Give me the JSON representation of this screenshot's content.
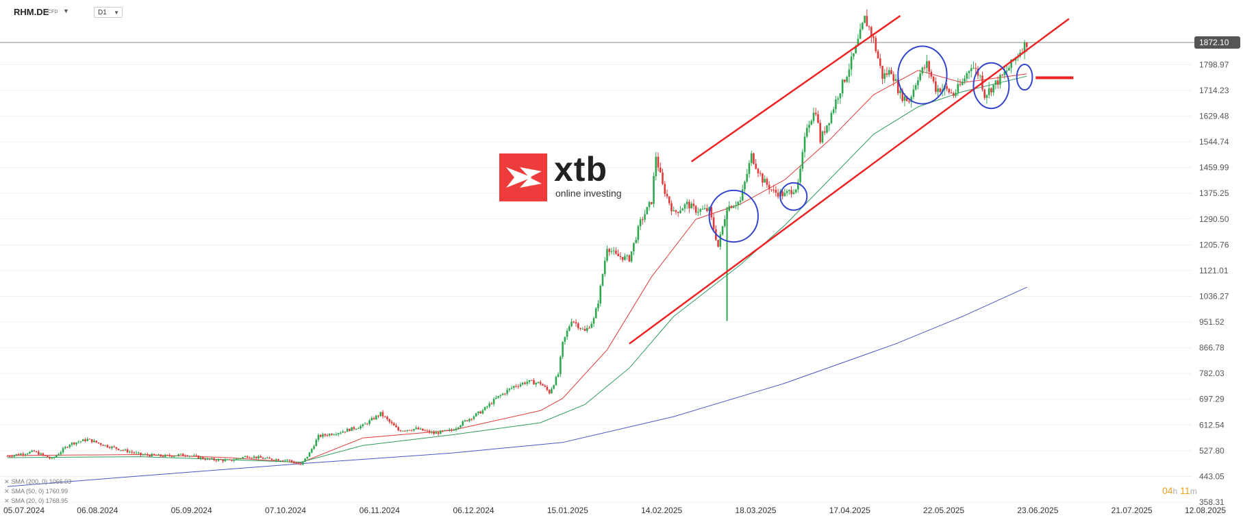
{
  "header": {
    "symbol": "RHM.DE",
    "instrument_type": "CFD",
    "timeframe": "D1"
  },
  "logo": {
    "word": "xtb",
    "tagline": "online investing"
  },
  "timer": {
    "hours": "04",
    "h_unit": "h",
    "minutes": "11",
    "m_unit": "m"
  },
  "indicators": [
    {
      "remove": "✕",
      "label": "SMA (200, 0)",
      "value": "1066.03",
      "color": "#4a56c8"
    },
    {
      "remove": "✕",
      "label": "SMA (50, 0)",
      "value": "1760.99",
      "color": "#2e9b5c"
    },
    {
      "remove": "✕",
      "label": "SMA (20, 0)",
      "value": "1768.95",
      "color": "#e03a3a"
    }
  ],
  "colors": {
    "up": "#2ea84f",
    "down": "#e03a3a",
    "sma20": "#e03a3a",
    "sma50": "#2e9b5c",
    "sma200": "#4a56c8",
    "channel": "#ee2222",
    "circles": "#3344cc",
    "grid": "#f0f0f0"
  },
  "chart_data": {
    "type": "candlestick",
    "current_price": "1872.10",
    "ylim": [
      358.31,
      1872.1
    ],
    "y_ticks": [
      "1872.10",
      "1798.97",
      "1714.23",
      "1629.48",
      "1544.74",
      "1459.99",
      "1375.25",
      "1290.50",
      "1205.76",
      "1121.01",
      "1036.27",
      "951.52",
      "866.78",
      "782.03",
      "697.29",
      "612.54",
      "527.80",
      "443.05",
      "358.31"
    ],
    "x_ticks": [
      "05.07.2024",
      "06.08.2024",
      "05.09.2024",
      "07.10.2024",
      "06.11.2024",
      "06.12.2024",
      "15.01.2025",
      "14.02.2025",
      "18.03.2025",
      "17.04.2025",
      "22.05.2025",
      "23.06.2025",
      "21.07.2025",
      "12.08.2025"
    ],
    "anchors": [
      [
        0,
        510
      ],
      [
        12,
        525
      ],
      [
        20,
        500
      ],
      [
        28,
        550
      ],
      [
        36,
        565
      ],
      [
        44,
        545
      ],
      [
        52,
        530
      ],
      [
        60,
        515
      ],
      [
        70,
        510
      ],
      [
        80,
        515
      ],
      [
        90,
        500
      ],
      [
        100,
        495
      ],
      [
        108,
        510
      ],
      [
        118,
        500
      ],
      [
        126,
        498
      ],
      [
        132,
        480
      ],
      [
        136,
        520
      ],
      [
        140,
        575
      ],
      [
        150,
        590
      ],
      [
        160,
        610
      ],
      [
        168,
        650
      ],
      [
        176,
        595
      ],
      [
        184,
        600
      ],
      [
        192,
        585
      ],
      [
        200,
        595
      ],
      [
        206,
        625
      ],
      [
        214,
        660
      ],
      [
        220,
        700
      ],
      [
        228,
        740
      ],
      [
        234,
        755
      ],
      [
        240,
        750
      ],
      [
        244,
        720
      ],
      [
        248,
        780
      ],
      [
        250,
        880
      ],
      [
        254,
        960
      ],
      [
        260,
        920
      ],
      [
        264,
        960
      ],
      [
        266,
        1020
      ],
      [
        270,
        1200
      ],
      [
        274,
        1170
      ],
      [
        280,
        1160
      ],
      [
        285,
        1280
      ],
      [
        290,
        1350
      ],
      [
        292,
        1500
      ],
      [
        295,
        1400
      ],
      [
        300,
        1310
      ],
      [
        306,
        1340
      ],
      [
        310,
        1320
      ],
      [
        316,
        1320
      ],
      [
        320,
        1200
      ],
      [
        324,
        1330
      ],
      [
        330,
        1350
      ],
      [
        335,
        1500
      ],
      [
        340,
        1420
      ],
      [
        345,
        1380
      ],
      [
        350,
        1370
      ],
      [
        356,
        1400
      ],
      [
        360,
        1600
      ],
      [
        364,
        1650
      ],
      [
        366,
        1550
      ],
      [
        370,
        1620
      ],
      [
        374,
        1700
      ],
      [
        378,
        1770
      ],
      [
        382,
        1850
      ],
      [
        386,
        1950
      ],
      [
        388,
        1920
      ],
      [
        390,
        1880
      ],
      [
        394,
        1760
      ],
      [
        398,
        1780
      ],
      [
        402,
        1700
      ],
      [
        406,
        1680
      ],
      [
        410,
        1760
      ],
      [
        414,
        1800
      ],
      [
        418,
        1720
      ],
      [
        422,
        1720
      ],
      [
        426,
        1700
      ],
      [
        430,
        1740
      ],
      [
        434,
        1800
      ],
      [
        438,
        1760
      ],
      [
        440,
        1700
      ],
      [
        444,
        1730
      ],
      [
        448,
        1760
      ],
      [
        452,
        1800
      ],
      [
        456,
        1845
      ],
      [
        459,
        1872
      ]
    ],
    "sma": [
      {
        "name": "SMA (20, 0)",
        "points": [
          [
            0,
            512
          ],
          [
            60,
            515
          ],
          [
            100,
            505
          ],
          [
            132,
            488
          ],
          [
            160,
            570
          ],
          [
            200,
            595
          ],
          [
            240,
            660
          ],
          [
            250,
            700
          ],
          [
            270,
            860
          ],
          [
            290,
            1100
          ],
          [
            310,
            1290
          ],
          [
            330,
            1340
          ],
          [
            350,
            1420
          ],
          [
            370,
            1550
          ],
          [
            390,
            1700
          ],
          [
            410,
            1780
          ],
          [
            430,
            1740
          ],
          [
            450,
            1760
          ],
          [
            459,
            1769
          ]
        ]
      },
      {
        "name": "SMA (50, 0)",
        "points": [
          [
            0,
            505
          ],
          [
            60,
            508
          ],
          [
            132,
            490
          ],
          [
            160,
            545
          ],
          [
            200,
            580
          ],
          [
            240,
            620
          ],
          [
            260,
            680
          ],
          [
            280,
            800
          ],
          [
            300,
            970
          ],
          [
            330,
            1140
          ],
          [
            350,
            1270
          ],
          [
            370,
            1420
          ],
          [
            390,
            1570
          ],
          [
            410,
            1660
          ],
          [
            430,
            1710
          ],
          [
            450,
            1745
          ],
          [
            459,
            1761
          ]
        ]
      },
      {
        "name": "SMA (200, 0)",
        "points": [
          [
            0,
            410
          ],
          [
            60,
            445
          ],
          [
            132,
            485
          ],
          [
            200,
            520
          ],
          [
            250,
            555
          ],
          [
            300,
            640
          ],
          [
            350,
            750
          ],
          [
            400,
            880
          ],
          [
            430,
            970
          ],
          [
            459,
            1066
          ]
        ]
      }
    ],
    "channel": {
      "upper": [
        [
          308,
          1480
        ],
        [
          402,
          1960
        ]
      ],
      "lower": [
        [
          280,
          880
        ],
        [
          478,
          1950
        ]
      ]
    },
    "target_level": {
      "price": 1756,
      "from": 463,
      "to": 480
    },
    "circles": [
      {
        "center": [
          327,
          1300
        ],
        "r_days": 11,
        "r_price": 85
      },
      {
        "center": [
          354,
          1365
        ],
        "r_days": 6,
        "r_price": 45
      },
      {
        "center": [
          412,
          1765
        ],
        "r_days": 11,
        "r_price": 95
      },
      {
        "center": [
          443,
          1730
        ],
        "r_days": 8,
        "r_price": 75
      },
      {
        "center": [
          458,
          1758
        ],
        "r_days": 3.5,
        "r_price": 42
      }
    ]
  }
}
